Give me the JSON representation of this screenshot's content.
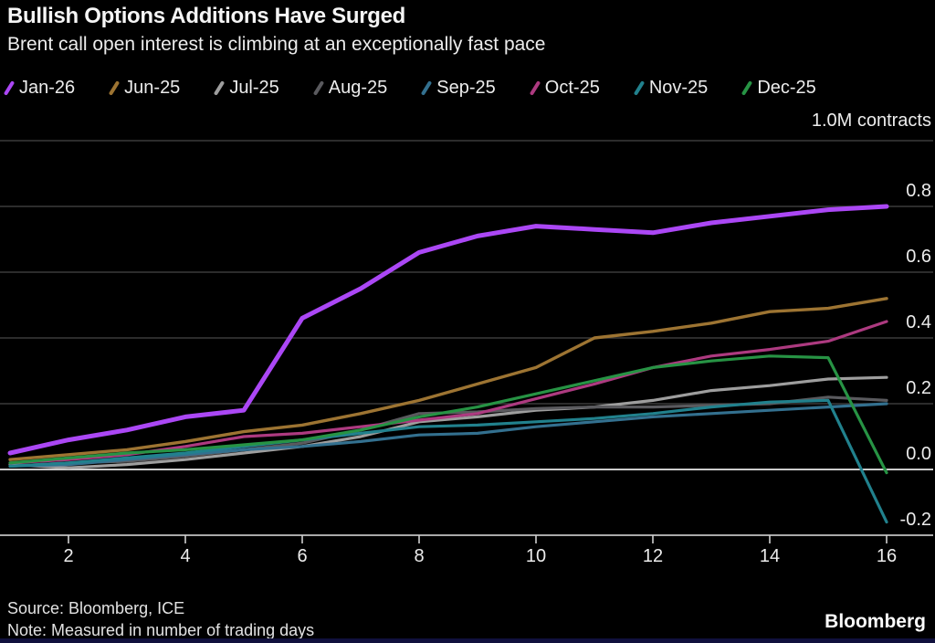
{
  "header": {
    "title": "Bullish Options Additions Have Surged",
    "subtitle": "Brent call open interest is climbing at an exceptionally fast pace"
  },
  "footer": {
    "source": "Source: Bloomberg, ICE",
    "note": "Note: Measured in number of trading days",
    "logo": "Bloomberg"
  },
  "chart_data": {
    "type": "line",
    "title": "Bullish Options Additions Have Surged",
    "subtitle": "Brent call open interest is climbing at an exceptionally fast pace",
    "unit_label": "1.0M contracts",
    "xlabel": "trading days",
    "ylabel": "contracts (millions)",
    "x": [
      1,
      2,
      3,
      4,
      5,
      6,
      7,
      8,
      9,
      10,
      11,
      12,
      13,
      14,
      15,
      16
    ],
    "x_ticks": [
      "2",
      "4",
      "6",
      "8",
      "10",
      "12",
      "14",
      "16"
    ],
    "x_tick_values": [
      2,
      4,
      6,
      8,
      10,
      12,
      14,
      16
    ],
    "xlim": [
      1,
      16
    ],
    "ylim": [
      -0.2,
      1.0
    ],
    "grid": "horizontal",
    "legend_position": "top",
    "y_ticks": [
      {
        "value": 1.0,
        "label": "",
        "style": "grid"
      },
      {
        "value": 0.8,
        "label": "0.8",
        "style": "grid"
      },
      {
        "value": 0.6,
        "label": "0.6",
        "style": "grid"
      },
      {
        "value": 0.4,
        "label": "0.4",
        "style": "grid"
      },
      {
        "value": 0.2,
        "label": "0.2",
        "style": "grid"
      },
      {
        "value": 0.0,
        "label": "0.0",
        "style": "zero"
      },
      {
        "value": -0.2,
        "label": "-0.2",
        "style": "axis"
      }
    ],
    "colors": {
      "background": "#000000",
      "grid_line": "#3b3b3b",
      "zero_line": "#e8e8e8",
      "axis_line": "#c2c2c2",
      "tick_mark": "#cfcfcf",
      "text": "#ececec"
    },
    "series": [
      {
        "name": "Jan-26",
        "color": "#ab47f5",
        "width": 5,
        "values": [
          0.05,
          0.09,
          0.12,
          0.16,
          0.18,
          0.46,
          0.55,
          0.66,
          0.71,
          0.74,
          0.73,
          0.72,
          0.75,
          0.77,
          0.79,
          0.8
        ]
      },
      {
        "name": "Jun-25",
        "color": "#9d7432",
        "width": 3.4,
        "values": [
          0.03,
          0.045,
          0.06,
          0.085,
          0.115,
          0.135,
          0.17,
          0.21,
          0.26,
          0.31,
          0.4,
          0.42,
          0.445,
          0.48,
          0.49,
          0.52
        ]
      },
      {
        "name": "Jul-25",
        "color": "#9e9e9e",
        "width": 3.2,
        "values": [
          0.015,
          0.005,
          0.015,
          0.03,
          0.05,
          0.07,
          0.1,
          0.145,
          0.16,
          0.18,
          0.19,
          0.21,
          0.24,
          0.255,
          0.275,
          0.28
        ]
      },
      {
        "name": "Aug-25",
        "color": "#5a5a5e",
        "width": 3.2,
        "values": [
          0.01,
          0.02,
          0.025,
          0.04,
          0.06,
          0.08,
          0.12,
          0.17,
          0.175,
          0.185,
          0.19,
          0.19,
          0.195,
          0.2,
          0.22,
          0.21
        ]
      },
      {
        "name": "Sep-25",
        "color": "#33708f",
        "width": 3.2,
        "values": [
          0.01,
          0.015,
          0.03,
          0.045,
          0.06,
          0.07,
          0.085,
          0.105,
          0.11,
          0.13,
          0.145,
          0.16,
          0.17,
          0.18,
          0.19,
          0.2
        ]
      },
      {
        "name": "Oct-25",
        "color": "#ad3a80",
        "width": 3.2,
        "values": [
          0.02,
          0.03,
          0.045,
          0.07,
          0.1,
          0.11,
          0.13,
          0.15,
          0.17,
          0.215,
          0.26,
          0.31,
          0.345,
          0.365,
          0.39,
          0.45
        ]
      },
      {
        "name": "Nov-25",
        "color": "#21818d",
        "width": 3.2,
        "values": [
          0.01,
          0.02,
          0.035,
          0.05,
          0.07,
          0.09,
          0.11,
          0.13,
          0.135,
          0.145,
          0.155,
          0.17,
          0.19,
          0.205,
          0.21,
          -0.16
        ]
      },
      {
        "name": "Dec-25",
        "color": "#279344",
        "width": 3.2,
        "values": [
          0.02,
          0.035,
          0.05,
          0.06,
          0.075,
          0.09,
          0.12,
          0.16,
          0.19,
          0.23,
          0.27,
          0.31,
          0.33,
          0.345,
          0.34,
          -0.01
        ]
      }
    ]
  }
}
